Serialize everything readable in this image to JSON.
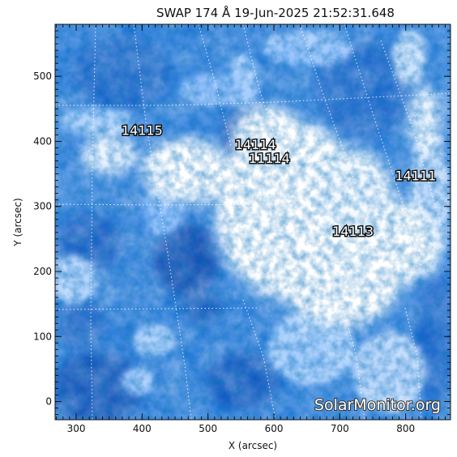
{
  "title": "SWAP 174 Å 19-Jun-2025 21:52:31.648",
  "xlabel": "X (arcsec)",
  "ylabel": "Y (arcsec)",
  "x_ticks": [
    300,
    400,
    500,
    600,
    700,
    800
  ],
  "y_ticks": [
    0,
    100,
    200,
    300,
    400,
    500
  ],
  "x_range": [
    268,
    868
  ],
  "y_range": [
    -28,
    580
  ],
  "active_regions": [
    {
      "label": "14115",
      "x": 400,
      "y": 410
    },
    {
      "label": "14114",
      "x": 572,
      "y": 388
    },
    {
      "label": "11114",
      "x": 593,
      "y": 367
    },
    {
      "label": "14111",
      "x": 815,
      "y": 340
    },
    {
      "label": "14113",
      "x": 720,
      "y": 255
    }
  ],
  "watermark": "SolarMonitor.org",
  "colors": {
    "dark_blue": "#003a9c",
    "mid_blue": "#2f7fdc",
    "light_blue": "#9cc8ff",
    "saturated": "#ffffff"
  }
}
